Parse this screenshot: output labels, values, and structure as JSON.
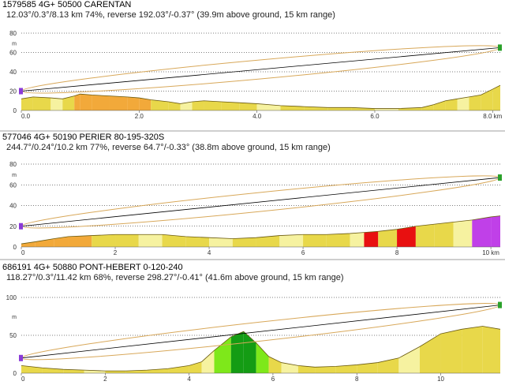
{
  "colors": {
    "background": "#ffffff",
    "grid_dotted": "#000000",
    "fresnel": "#d8a85a",
    "line_of_sight": "#000000",
    "terrain_base": "#e8d84a",
    "terrain_light": "#f6f2a0",
    "terrain_yellow": "#f4dc3a",
    "terrain_orange": "#f2a93a",
    "terrain_olive": "#c8b040",
    "terrain_green_dark": "#149c14",
    "terrain_green_light": "#7ee81a",
    "terrain_red": "#e81010",
    "terrain_purple": "#c040e8",
    "site_marker": "#8a3ad8",
    "target_marker": "#2aa12a",
    "separator": "#cfcfcf"
  },
  "panels": [
    {
      "title": "1579585 4G+ 50500 CARENTAN",
      "subtitle": "12.03°/0.3°/8.13 km 74%, reverse 192.03°/-0.37° (39.9m above ground, 15 km range)",
      "chart_data": {
        "type": "area",
        "y_ticks": [
          "80",
          "m",
          "60",
          "40",
          "20",
          "0"
        ],
        "y_tick_values": [
          80,
          70,
          60,
          40,
          20,
          0
        ],
        "x_ticks": [
          "0.0",
          "2.0",
          "4.0",
          "6.0",
          "8.0 km"
        ],
        "x_tick_values": [
          0,
          2,
          4,
          6,
          8
        ],
        "xlim": [
          0,
          8.13
        ],
        "ylim": [
          0,
          80
        ],
        "grid": "dotted horizontal at 20, 40, 60, 80",
        "line_of_sight": {
          "start_m": 20,
          "end_m": 65
        },
        "terrain_x": [
          0,
          0.2,
          0.5,
          0.7,
          0.9,
          1.0,
          1.2,
          1.5,
          1.8,
          2.0,
          2.2,
          2.5,
          2.7,
          2.9,
          3.1,
          3.4,
          3.7,
          4.0,
          4.4,
          4.8,
          5.2,
          5.6,
          6.0,
          6.4,
          6.8,
          7.0,
          7.2,
          7.4,
          7.6,
          7.8,
          8.0,
          8.13
        ],
        "terrain_m": [
          12,
          14,
          13,
          12,
          15,
          17,
          16,
          15,
          14,
          13,
          11,
          9,
          7,
          9,
          10,
          9,
          8,
          7,
          5,
          4,
          3,
          3,
          2,
          2,
          3,
          6,
          10,
          12,
          14,
          16,
          22,
          26
        ]
      }
    },
    {
      "title": "577046 4G+ 50190 PERIER 80-195-320S",
      "subtitle": "244.7°/0.24°/10.2 km 77%, reverse 64.7°/-0.33° (38.8m above ground, 15 km range)",
      "chart_data": {
        "type": "area",
        "y_ticks": [
          "80",
          "m",
          "60",
          "40",
          "20",
          "0"
        ],
        "y_tick_values": [
          80,
          70,
          60,
          40,
          20,
          0
        ],
        "x_ticks": [
          "0",
          "2",
          "4",
          "6",
          "8",
          "10 km"
        ],
        "x_tick_values": [
          0,
          2,
          4,
          6,
          8,
          10
        ],
        "xlim": [
          0,
          10.2
        ],
        "ylim": [
          0,
          80
        ],
        "grid": "dotted horizontal at 20, 40, 60, 80",
        "line_of_sight": {
          "start_m": 20,
          "end_m": 67
        },
        "terrain_x": [
          0,
          0.3,
          0.7,
          1.0,
          1.5,
          2.0,
          2.5,
          3.0,
          3.5,
          4.0,
          4.5,
          5.0,
          5.5,
          6.0,
          6.5,
          7.0,
          7.3,
          7.6,
          8.0,
          8.4,
          8.8,
          9.2,
          9.6,
          10.0,
          10.2
        ],
        "terrain_m": [
          3,
          5,
          8,
          10,
          11,
          12,
          12,
          12,
          10,
          9,
          8,
          9,
          11,
          12,
          12,
          13,
          14,
          15,
          17,
          20,
          22,
          24,
          26,
          29,
          30
        ]
      }
    },
    {
      "title": "686191 4G+ 50880 PONT-HEBERT 0-120-240",
      "subtitle": "118.27°/0.3°/11.42 km 68%, reverse 298.27°/-0.41° (41.6m above ground, 15 km range)",
      "chart_data": {
        "type": "area",
        "y_ticks": [
          "100",
          "m",
          "50",
          "0"
        ],
        "y_tick_values": [
          100,
          75,
          50,
          0
        ],
        "x_ticks": [
          "0",
          "2",
          "4",
          "6",
          "8",
          "10"
        ],
        "x_tick_values": [
          0,
          2,
          4,
          6,
          8,
          10
        ],
        "xlim": [
          0,
          11.42
        ],
        "ylim": [
          0,
          100
        ],
        "grid": "dotted horizontal at 50, 100",
        "line_of_sight": {
          "start_m": 20,
          "end_m": 90
        },
        "terrain_x": [
          0,
          0.5,
          1.0,
          1.5,
          2.0,
          2.5,
          3.0,
          3.5,
          4.0,
          4.3,
          4.6,
          5.0,
          5.3,
          5.6,
          5.9,
          6.2,
          6.6,
          7.0,
          7.5,
          8.0,
          8.5,
          9.0,
          9.5,
          10.0,
          10.5,
          11.0,
          11.42
        ],
        "terrain_m": [
          10,
          7,
          5,
          4,
          3,
          3,
          4,
          6,
          10,
          15,
          30,
          48,
          55,
          40,
          22,
          14,
          10,
          8,
          9,
          11,
          14,
          20,
          35,
          52,
          58,
          62,
          58
        ]
      }
    }
  ]
}
